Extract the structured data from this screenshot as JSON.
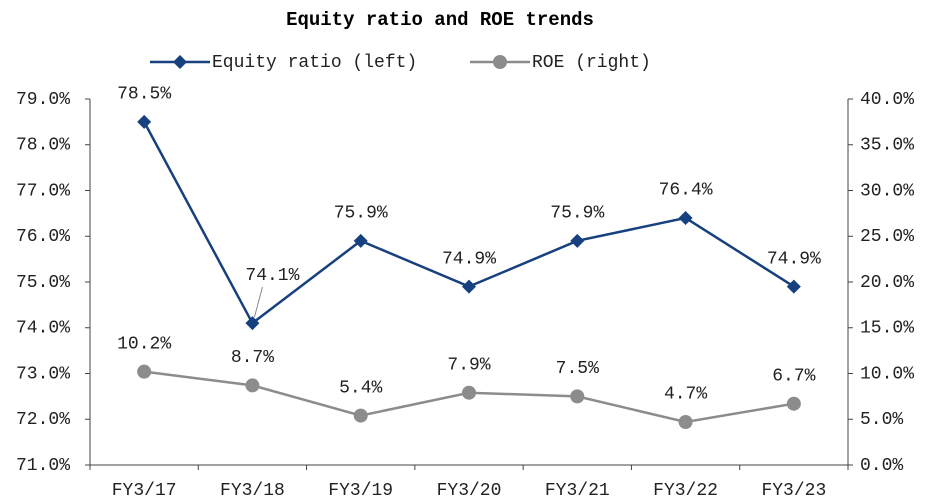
{
  "chart_data": {
    "type": "line",
    "title": "Equity ratio and ROE trends",
    "categories": [
      "FY3/17",
      "FY3/18",
      "FY3/19",
      "FY3/20",
      "FY3/21",
      "FY3/22",
      "FY3/23"
    ],
    "series": [
      {
        "name": "Equity ratio (left)",
        "color": "#17407e",
        "marker": "diamond",
        "axis": "y",
        "values": [
          78.5,
          74.1,
          75.9,
          74.9,
          75.9,
          76.4,
          74.9
        ],
        "value_labels": [
          "78.5%",
          "74.1%",
          "75.9%",
          "74.9%",
          "75.9%",
          "76.4%",
          "74.9%"
        ]
      },
      {
        "name": "ROE (right)",
        "color": "#8c8c8c",
        "marker": "circle",
        "axis": "y2",
        "values": [
          10.2,
          8.7,
          5.4,
          7.9,
          7.5,
          4.7,
          6.7
        ],
        "value_labels": [
          "10.2%",
          "8.7%",
          "5.4%",
          "7.9%",
          "7.5%",
          "4.7%",
          "6.7%"
        ]
      }
    ],
    "ylim": [
      71,
      79
    ],
    "yticks": [
      {
        "value": 71,
        "label": "71.0%"
      },
      {
        "value": 72,
        "label": "72.0%"
      },
      {
        "value": 73,
        "label": "73.0%"
      },
      {
        "value": 74,
        "label": "74.0%"
      },
      {
        "value": 75,
        "label": "75.0%"
      },
      {
        "value": 76,
        "label": "76.0%"
      },
      {
        "value": 77,
        "label": "77.0%"
      },
      {
        "value": 78,
        "label": "78.0%"
      },
      {
        "value": 79,
        "label": "79.0%"
      }
    ],
    "y2lim": [
      0,
      40
    ],
    "y2ticks": [
      {
        "value": 0,
        "label": "0.0%"
      },
      {
        "value": 5,
        "label": "5.0%"
      },
      {
        "value": 10,
        "label": "10.0%"
      },
      {
        "value": 15,
        "label": "15.0%"
      },
      {
        "value": 20,
        "label": "20.0%"
      },
      {
        "value": 25,
        "label": "25.0%"
      },
      {
        "value": 30,
        "label": "30.0%"
      },
      {
        "value": 35,
        "label": "35.0%"
      },
      {
        "value": 40,
        "label": "40.0%"
      }
    ],
    "grid": false,
    "legend": "top"
  }
}
